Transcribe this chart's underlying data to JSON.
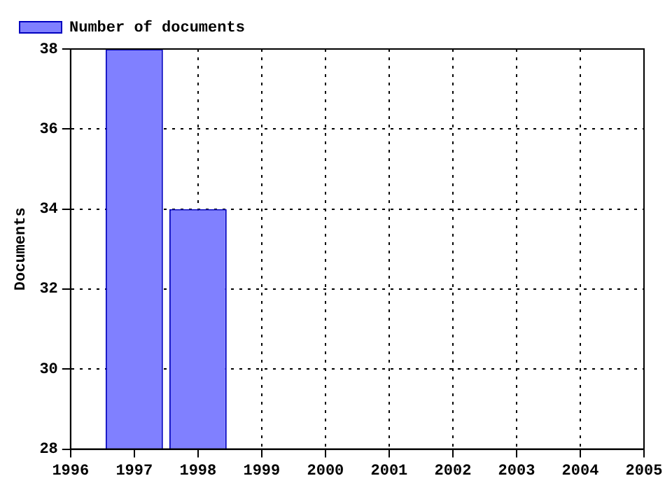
{
  "chart_data": {
    "type": "bar",
    "ylabel": "Documents",
    "x": [
      1997,
      1998
    ],
    "series": [
      {
        "name": "Number of documents",
        "color": "#8080ff",
        "values": [
          38,
          34
        ]
      }
    ],
    "xlim": [
      1996,
      2005
    ],
    "xticks": [
      1996,
      1997,
      1998,
      1999,
      2000,
      2001,
      2002,
      2003,
      2004,
      2005
    ],
    "ylim": [
      28,
      38
    ],
    "yticks": [
      28,
      30,
      32,
      34,
      36,
      38
    ],
    "grid": true,
    "legend": "top left"
  }
}
